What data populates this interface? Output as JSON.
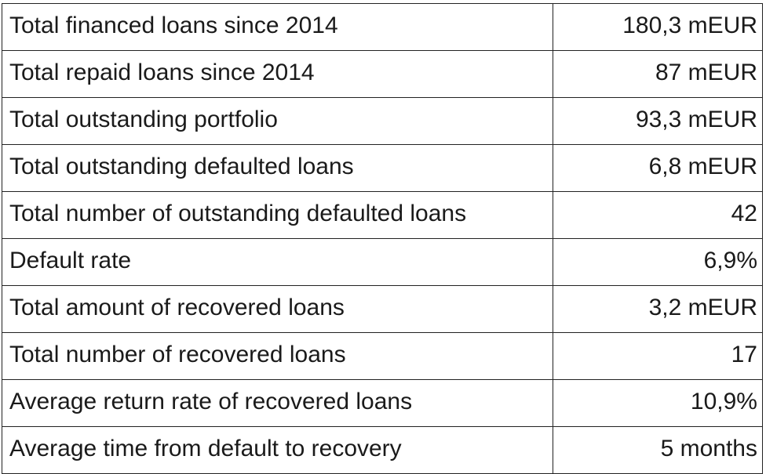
{
  "rows": [
    {
      "label": "Total financed loans since 2014",
      "value": "180,3 mEUR"
    },
    {
      "label": "Total repaid loans since 2014",
      "value": "87 mEUR"
    },
    {
      "label": "Total outstanding portfolio",
      "value": "93,3 mEUR"
    },
    {
      "label": "Total outstanding defaulted loans",
      "value": "6,8 mEUR"
    },
    {
      "label": "Total number of outstanding defaulted loans",
      "value": "42"
    },
    {
      "label": "Default rate",
      "value": "6,9%"
    },
    {
      "label": "Total amount of recovered loans",
      "value": "3,2 mEUR"
    },
    {
      "label": "Total number of recovered loans",
      "value": "17"
    },
    {
      "label": "Average return rate of recovered loans",
      "value": "10,9%"
    },
    {
      "label": "Average time from default to recovery",
      "value": "5 months"
    }
  ]
}
